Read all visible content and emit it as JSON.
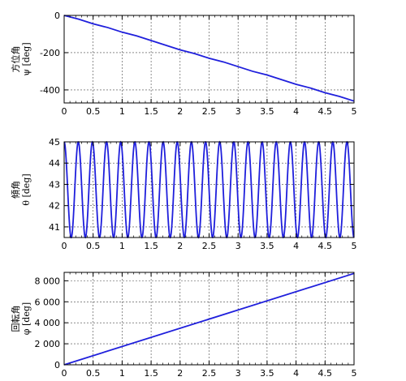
{
  "chart_data": [
    {
      "type": "line",
      "title": "",
      "xlabel": "",
      "ylabel_lines": [
        "方位角",
        "ψ [deg]"
      ],
      "xlim": [
        0,
        5
      ],
      "ylim": [
        -470,
        0
      ],
      "xticks": [
        0,
        0.5,
        1,
        1.5,
        2,
        2.5,
        3,
        3.5,
        4,
        4.5,
        5
      ],
      "yticks": [
        0,
        -200,
        -400
      ],
      "grid": true,
      "color": "#1f1fdc",
      "series": [
        {
          "x": [
            0,
            0.25,
            0.5,
            0.75,
            1,
            1.25,
            1.5,
            1.75,
            2,
            2.25,
            2.5,
            2.75,
            3,
            3.25,
            3.5,
            3.75,
            4,
            4.25,
            4.5,
            4.75,
            5
          ],
          "y": [
            0,
            -20,
            -45,
            -65,
            -90,
            -110,
            -135,
            -160,
            -185,
            -205,
            -230,
            -250,
            -275,
            -300,
            -320,
            -345,
            -370,
            -390,
            -415,
            -435,
            -460
          ]
        }
      ]
    },
    {
      "type": "line",
      "title": "",
      "xlabel": "",
      "ylabel_lines": [
        "傾角",
        "θ [deg]"
      ],
      "xlim": [
        0,
        5
      ],
      "ylim": [
        40.5,
        45
      ],
      "xticks": [
        0,
        0.5,
        1,
        1.5,
        2,
        2.5,
        3,
        3.5,
        4,
        4.5,
        5
      ],
      "yticks": [
        41,
        42,
        43,
        44,
        45
      ],
      "grid": true,
      "color": "#1f1fdc",
      "oscillation": {
        "min": 40.5,
        "max": 45,
        "cycles": 20.5,
        "start": 45
      }
    },
    {
      "type": "line",
      "title": "",
      "xlabel": "",
      "ylabel_lines": [
        "回転角",
        "φ [deg]"
      ],
      "xlim": [
        0,
        5
      ],
      "ylim": [
        0,
        8800
      ],
      "xticks": [
        0,
        0.5,
        1,
        1.5,
        2,
        2.5,
        3,
        3.5,
        4,
        4.5,
        5
      ],
      "yticks": [
        0,
        2000,
        4000,
        6000,
        8000
      ],
      "ytick_labels": [
        "0",
        "2 000",
        "4 000",
        "6 000",
        "8 000"
      ],
      "grid": true,
      "color": "#1f1fdc",
      "series": [
        {
          "x": [
            0,
            5
          ],
          "y": [
            0,
            8700
          ]
        }
      ]
    }
  ]
}
